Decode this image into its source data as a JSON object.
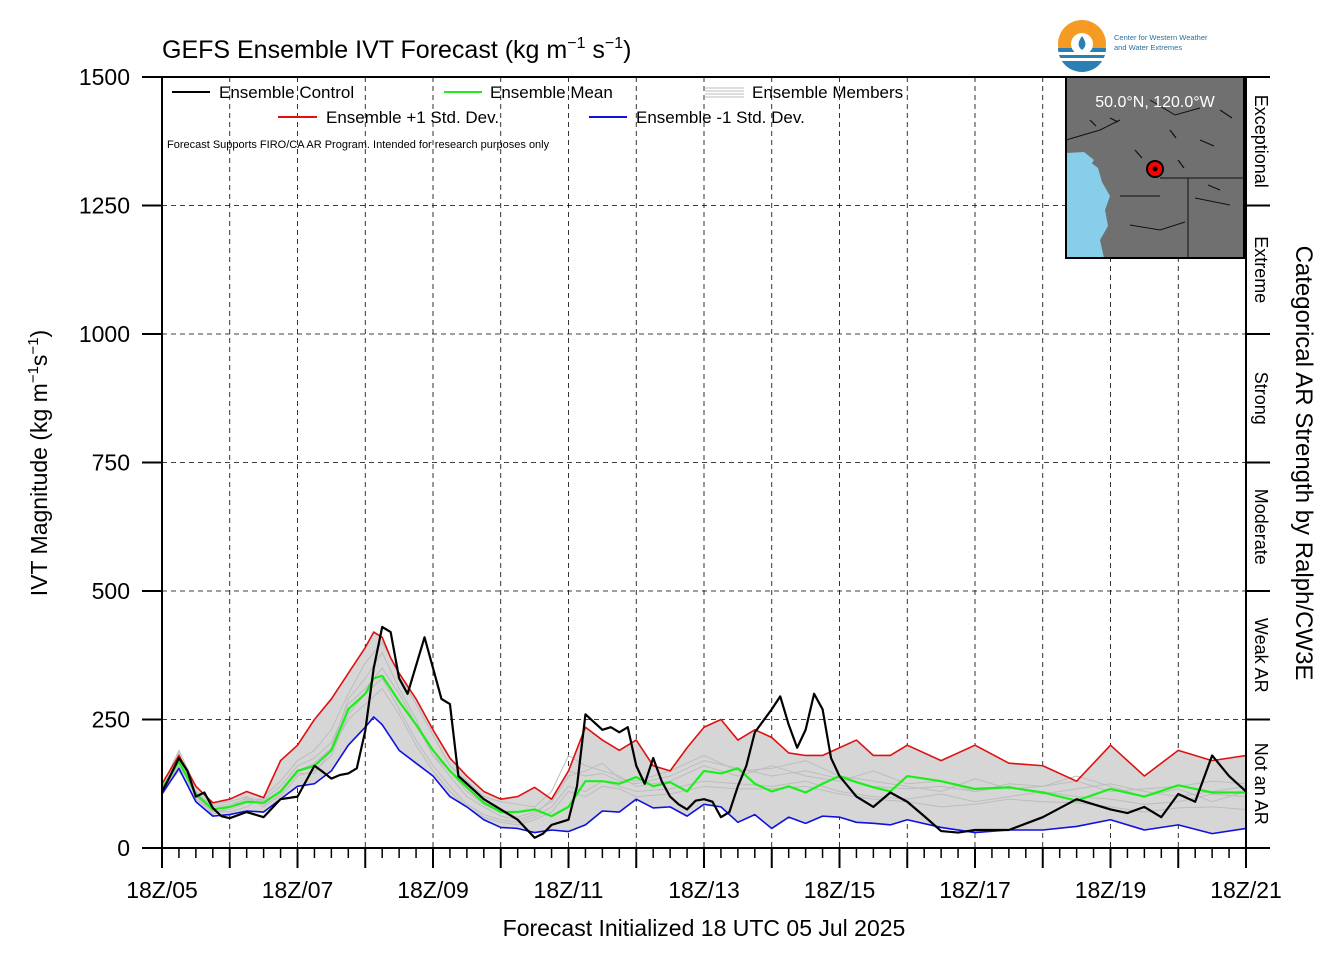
{
  "chart_data": {
    "type": "line",
    "title": "GEFS Ensemble IVT Forecast (kg m",
    "title_exp1": "−1",
    "title_mid": " s",
    "title_exp2": "−1",
    "title_end": ")",
    "xlabel": "Forecast Initialized 18 UTC 05 Jul 2025",
    "ylabel": "IVT Magnitude (kg m",
    "ylabel_exp1": "−1",
    "ylabel_mid": "s",
    "ylabel_exp2": "−1",
    "ylabel_end": ")",
    "right_axis_label": "Categorical AR Strength by Ralph/CW3E",
    "note": "Forecast Supports FIRO/CA AR Program. Intended for research purposes only",
    "ylim": [
      0,
      1500
    ],
    "xlim": [
      0,
      16
    ],
    "x_unit": "days since 18Z/05",
    "y_ticks": [
      0,
      250,
      500,
      750,
      1000,
      1250,
      1500
    ],
    "x_tick_labels": [
      "18Z/05",
      "18Z/07",
      "18Z/09",
      "18Z/11",
      "18Z/13",
      "18Z/15",
      "18Z/17",
      "18Z/19",
      "18Z/21"
    ],
    "categories": [
      "Not an AR",
      "Weak AR",
      "Moderate",
      "Strong",
      "Extreme",
      "Exceptional"
    ],
    "category_bounds": [
      0,
      250,
      500,
      750,
      1000,
      1250,
      1500
    ],
    "grid": true,
    "legend": {
      "placement": "top-left",
      "entries": [
        "Ensemble Control",
        "Ensemble Mean",
        "Ensemble Members",
        "Ensemble +1 Std. Dev.",
        "Ensemble -1 Std. Dev."
      ]
    },
    "inset": {
      "label": "50.0°N, 120.0°W"
    },
    "logo_text": [
      "Center for Western Weather",
      "and Water Extremes"
    ],
    "colors": {
      "control": "#000000",
      "mean": "#1cee1c",
      "plus_std": "#e01010",
      "minus_std": "#1010e0",
      "members": "#bdbdbd",
      "band": "#d6d6d6",
      "water": "#87ceeb",
      "land": "#707070"
    },
    "series": [
      {
        "name": "Ensemble Control",
        "x": [
          0,
          0.083,
          0.25,
          0.375,
          0.5,
          0.625,
          0.75,
          0.875,
          1.0,
          1.25,
          1.5,
          1.75,
          2.0,
          2.25,
          2.375,
          2.5,
          2.625,
          2.75,
          2.875,
          3.0,
          3.125,
          3.25,
          3.375,
          3.5,
          3.625,
          3.75,
          3.875,
          4.0,
          4.125,
          4.25,
          4.375,
          4.5,
          4.625,
          4.75,
          5.0,
          5.25,
          5.5,
          5.625,
          5.75,
          5.875,
          6.0,
          6.125,
          6.25,
          6.375,
          6.5,
          6.625,
          6.75,
          6.875,
          7.0,
          7.125,
          7.25,
          7.375,
          7.5,
          7.625,
          7.75,
          7.875,
          8.0,
          8.125,
          8.25,
          8.375,
          8.5,
          8.625,
          8.75,
          9.0,
          9.125,
          9.25,
          9.375,
          9.5,
          9.625,
          9.75,
          9.875,
          10.0,
          10.25,
          10.5,
          10.75,
          11.0,
          11.25,
          11.5,
          11.75,
          12.0,
          12.5,
          13.0,
          13.5,
          14.0,
          14.25,
          14.5,
          14.75,
          15.0,
          15.25,
          15.5,
          15.75,
          16.0
        ],
        "y": [
          110,
          130,
          175,
          150,
          100,
          108,
          78,
          62,
          58,
          70,
          60,
          95,
          100,
          160,
          148,
          135,
          142,
          145,
          155,
          228,
          350,
          430,
          420,
          330,
          300,
          355,
          410,
          350,
          290,
          280,
          140,
          125,
          110,
          95,
          75,
          55,
          20,
          28,
          45,
          50,
          55,
          120,
          260,
          245,
          230,
          235,
          225,
          235,
          160,
          125,
          175,
          130,
          100,
          85,
          75,
          92,
          95,
          90,
          60,
          70,
          120,
          160,
          225,
          270,
          295,
          240,
          195,
          230,
          300,
          270,
          175,
          140,
          100,
          80,
          108,
          90,
          62,
          33,
          30,
          35,
          35,
          60,
          95,
          75,
          68,
          80,
          60,
          105,
          90,
          180,
          140,
          110
        ]
      },
      {
        "name": "Ensemble Mean",
        "x": [
          0,
          0.25,
          0.5,
          0.75,
          1.0,
          1.25,
          1.5,
          1.75,
          2.0,
          2.25,
          2.5,
          2.75,
          3.0,
          3.125,
          3.25,
          3.375,
          3.5,
          3.75,
          4.0,
          4.25,
          4.5,
          4.75,
          5.0,
          5.25,
          5.5,
          5.75,
          6.0,
          6.25,
          6.5,
          6.75,
          7.0,
          7.25,
          7.5,
          7.75,
          8.0,
          8.25,
          8.5,
          8.75,
          9.0,
          9.25,
          9.5,
          9.75,
          10.0,
          10.25,
          10.5,
          10.75,
          11.0,
          11.5,
          12.0,
          12.5,
          13.0,
          13.5,
          14.0,
          14.5,
          15.0,
          15.5,
          16.0
        ],
        "y": [
          115,
          168,
          105,
          75,
          80,
          90,
          88,
          110,
          150,
          160,
          190,
          270,
          300,
          330,
          335,
          310,
          285,
          240,
          190,
          150,
          118,
          88,
          70,
          70,
          75,
          62,
          80,
          130,
          130,
          125,
          138,
          120,
          128,
          110,
          150,
          145,
          155,
          125,
          110,
          120,
          108,
          125,
          140,
          128,
          118,
          110,
          140,
          130,
          115,
          118,
          108,
          92,
          115,
          100,
          122,
          108,
          108
        ]
      },
      {
        "name": "Ensemble +1 Std. Dev.",
        "x": [
          0,
          0.25,
          0.5,
          0.75,
          1.0,
          1.25,
          1.5,
          1.75,
          2.0,
          2.25,
          2.5,
          2.75,
          3.0,
          3.125,
          3.25,
          3.375,
          3.5,
          3.75,
          4.0,
          4.25,
          4.5,
          4.75,
          5.0,
          5.25,
          5.5,
          5.75,
          6.0,
          6.25,
          6.5,
          6.75,
          7.0,
          7.25,
          7.5,
          7.75,
          8.0,
          8.25,
          8.5,
          8.75,
          9.0,
          9.25,
          9.5,
          9.75,
          10.0,
          10.25,
          10.5,
          10.75,
          11.0,
          11.5,
          12.0,
          12.5,
          13.0,
          13.5,
          14.0,
          14.5,
          15.0,
          15.5,
          16.0
        ],
        "y": [
          125,
          180,
          120,
          88,
          95,
          110,
          98,
          170,
          200,
          250,
          290,
          340,
          390,
          420,
          410,
          370,
          340,
          290,
          230,
          175,
          140,
          110,
          95,
          100,
          118,
          95,
          150,
          235,
          210,
          190,
          210,
          160,
          150,
          195,
          235,
          250,
          210,
          230,
          215,
          185,
          180,
          180,
          195,
          210,
          180,
          180,
          200,
          170,
          200,
          165,
          160,
          130,
          200,
          140,
          190,
          170,
          180
        ]
      },
      {
        "name": "Ensemble -1 Std. Dev.",
        "x": [
          0,
          0.25,
          0.5,
          0.75,
          1.0,
          1.25,
          1.5,
          1.75,
          2.0,
          2.25,
          2.5,
          2.75,
          3.0,
          3.125,
          3.25,
          3.375,
          3.5,
          3.75,
          4.0,
          4.25,
          4.5,
          4.75,
          5.0,
          5.25,
          5.5,
          5.75,
          6.0,
          6.25,
          6.5,
          6.75,
          7.0,
          7.25,
          7.5,
          7.75,
          8.0,
          8.25,
          8.5,
          8.75,
          9.0,
          9.25,
          9.5,
          9.75,
          10.0,
          10.25,
          10.5,
          10.75,
          11.0,
          11.5,
          12.0,
          12.5,
          13.0,
          13.5,
          14.0,
          14.5,
          15.0,
          15.5,
          16.0
        ],
        "y": [
          105,
          155,
          90,
          62,
          65,
          72,
          70,
          95,
          120,
          125,
          150,
          200,
          235,
          255,
          240,
          215,
          190,
          165,
          140,
          100,
          80,
          55,
          40,
          38,
          30,
          35,
          32,
          45,
          72,
          70,
          95,
          78,
          80,
          62,
          85,
          80,
          50,
          65,
          38,
          60,
          48,
          62,
          60,
          50,
          48,
          45,
          55,
          40,
          30,
          35,
          35,
          42,
          55,
          35,
          45,
          28,
          38
        ]
      }
    ],
    "members": [
      [
        115,
        185,
        95,
        70,
        75,
        88,
        95,
        120,
        160,
        175,
        205,
        280,
        310,
        350,
        300,
        240,
        180,
        150,
        110,
        85,
        70,
        60,
        70,
        90,
        140,
        150,
        165,
        135,
        130,
        150,
        180,
        150,
        155,
        170,
        140,
        130,
        120,
        110,
        135,
        115,
        120,
        140,
        120,
        100,
        115,
        90,
        110
      ],
      [
        112,
        160,
        110,
        80,
        85,
        95,
        85,
        100,
        140,
        150,
        180,
        260,
        300,
        330,
        270,
        210,
        160,
        120,
        85,
        65,
        55,
        50,
        60,
        80,
        120,
        110,
        130,
        120,
        110,
        115,
        130,
        125,
        120,
        130,
        110,
        100,
        95,
        105,
        90,
        100,
        110,
        100,
        95,
        85,
        90,
        105,
        100
      ],
      [
        118,
        175,
        100,
        72,
        70,
        80,
        100,
        130,
        170,
        190,
        230,
        300,
        360,
        400,
        340,
        280,
        220,
        160,
        130,
        100,
        90,
        85,
        80,
        110,
        180,
        160,
        150,
        140,
        120,
        130,
        160,
        140,
        160,
        140,
        130,
        150,
        125,
        130,
        110,
        125,
        120,
        130,
        110,
        115,
        120,
        130,
        125
      ],
      [
        110,
        150,
        105,
        65,
        80,
        98,
        92,
        110,
        145,
        145,
        190,
        250,
        280,
        310,
        260,
        200,
        150,
        110,
        80,
        60,
        50,
        45,
        55,
        70,
        110,
        100,
        120,
        115,
        100,
        105,
        120,
        115,
        115,
        120,
        105,
        95,
        90,
        80,
        85,
        95,
        90,
        88,
        80,
        70,
        78,
        80,
        75
      ],
      [
        120,
        190,
        120,
        85,
        90,
        100,
        80,
        105,
        150,
        165,
        195,
        290,
        330,
        380,
        310,
        250,
        180,
        140,
        100,
        80,
        62,
        55,
        65,
        95,
        150,
        140,
        145,
        130,
        125,
        140,
        170,
        155,
        140,
        150,
        135,
        120,
        115,
        120,
        110,
        120,
        105,
        115,
        125,
        110,
        100,
        110,
        120
      ]
    ],
    "member_x": [
      0,
      0.25,
      0.5,
      0.75,
      1.0,
      1.25,
      1.5,
      1.75,
      2.0,
      2.25,
      2.5,
      2.75,
      3.0,
      3.25,
      3.5,
      3.75,
      4.0,
      4.25,
      4.5,
      4.75,
      5.0,
      5.25,
      5.5,
      5.75,
      6.0,
      6.25,
      6.5,
      6.75,
      7.0,
      7.5,
      8.0,
      8.5,
      9.0,
      9.5,
      10.0,
      10.5,
      11.0,
      11.5,
      12.0,
      12.5,
      13.0,
      13.5,
      14.0,
      14.5,
      15.0,
      15.5,
      16.0
    ]
  }
}
